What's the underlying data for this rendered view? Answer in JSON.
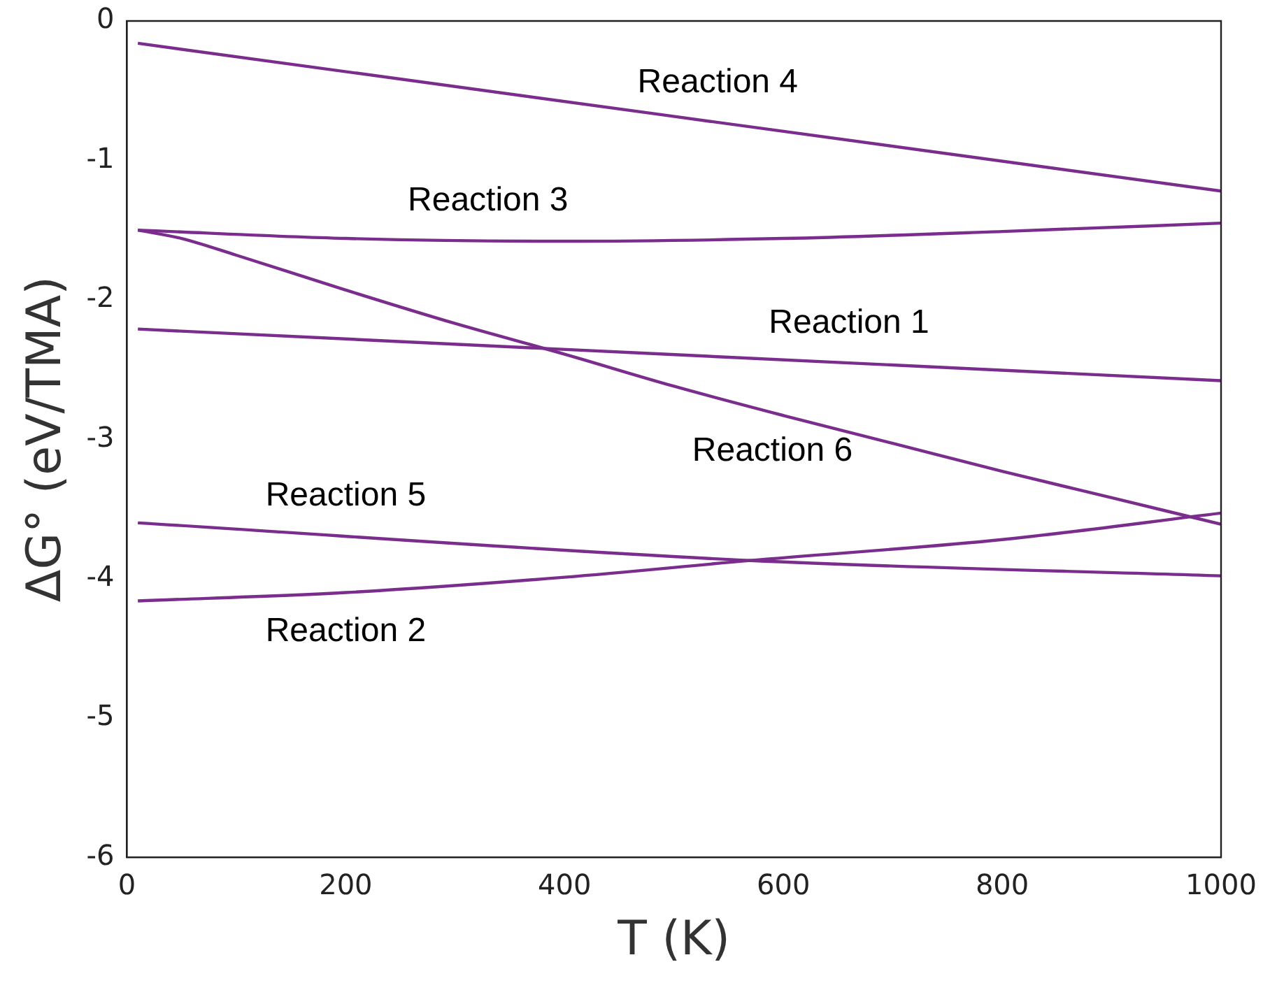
{
  "chart_data": {
    "type": "line",
    "xlabel": "T (K)",
    "ylabel": "ΔG° (eV/TMA)",
    "xlim": [
      0,
      1000
    ],
    "xticks": [
      0,
      200,
      400,
      600,
      800,
      1000
    ],
    "ylim": [
      -6,
      0
    ],
    "yticks": [
      -6,
      -5,
      -4,
      -3,
      -2,
      -1,
      0
    ],
    "grid": false,
    "legend": false,
    "marker": "none",
    "line_style": "solid",
    "series": [
      {
        "name": "Reaction 1",
        "color": "#7b2d8e",
        "x": [
          10,
          1000
        ],
        "values": [
          -2.21,
          -2.58
        ]
      },
      {
        "name": "Reaction 2",
        "color": "#7b2d8e",
        "x": [
          10,
          200,
          400,
          570,
          800,
          1000
        ],
        "values": [
          -4.16,
          -4.1,
          -3.99,
          -3.87,
          -3.72,
          -3.53
        ]
      },
      {
        "name": "Reaction 3",
        "color": "#7b2d8e",
        "x": [
          10,
          200,
          400,
          600,
          800,
          1000
        ],
        "values": [
          -1.5,
          -1.56,
          -1.58,
          -1.56,
          -1.51,
          -1.45
        ]
      },
      {
        "name": "Reaction 4",
        "color": "#7b2d8e",
        "x": [
          10,
          1000
        ],
        "values": [
          -0.16,
          -1.22
        ]
      },
      {
        "name": "Reaction 5",
        "color": "#7b2d8e",
        "x": [
          10,
          570,
          1000
        ],
        "values": [
          -3.6,
          -3.87,
          -3.98
        ]
      },
      {
        "name": "Reaction 6",
        "color": "#7b2d8e",
        "x": [
          10,
          50,
          100,
          200,
          300,
          400,
          500,
          600,
          700,
          800,
          900,
          1000
        ],
        "values": [
          -1.5,
          -1.56,
          -1.68,
          -1.93,
          -2.17,
          -2.39,
          -2.62,
          -2.83,
          -3.03,
          -3.23,
          -3.42,
          -3.61
        ]
      }
    ]
  }
}
